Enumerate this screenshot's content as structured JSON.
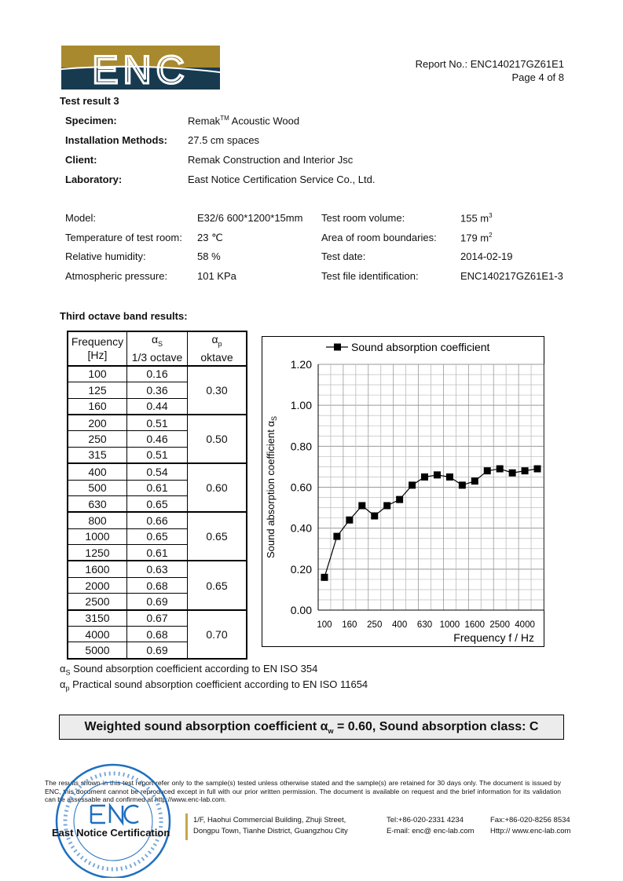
{
  "header": {
    "logo_text": "ENC",
    "report_no": "Report No.: ENC140217GZ61E1",
    "page": "Page 4 of 8",
    "logo_colors": {
      "gold": "#a8892e",
      "navy": "#173a4f"
    }
  },
  "section_title": "Test result 3",
  "info": [
    {
      "label": "Specimen:",
      "value": "Remak",
      "sup": "TM",
      "value2": " Acoustic Wood"
    },
    {
      "label": "Installation Methods:",
      "value": "27.5 cm spaces"
    },
    {
      "label": "Client:",
      "value": "Remak Construction and Interior Jsc"
    },
    {
      "label": "Laboratory:",
      "value": "East Notice Certification Service Co., Ltd."
    }
  ],
  "conditions_left": [
    {
      "label": "Model:",
      "value": "E32/6 600*1200*15mm"
    },
    {
      "label": "Temperature of test room:",
      "value": "23 ℃"
    },
    {
      "label": "Relative humidity:",
      "value": "58 %"
    },
    {
      "label": "Atmospheric pressure:",
      "value": "101 KPa"
    }
  ],
  "conditions_right": [
    {
      "label": "Test room volume:",
      "value": "155 m",
      "sup": "3"
    },
    {
      "label": "Area of room boundaries:",
      "value": "179 m",
      "sup": "2"
    },
    {
      "label": "Test date:",
      "value": "2014-02-19"
    },
    {
      "label": "Test file identification:",
      "value": "ENC140217GZ61E1-3"
    }
  ],
  "band_title": "Third octave band results:",
  "table": {
    "headers": [
      {
        "l1": "Frequency",
        "l2": "[Hz]"
      },
      {
        "l1": "α",
        "sub": "S",
        "l2": "1/3 octave"
      },
      {
        "l1": "α",
        "sub": "p",
        "l2": "oktave"
      }
    ],
    "rows": [
      [
        "100",
        "0.16"
      ],
      [
        "125",
        "0.36"
      ],
      [
        "160",
        "0.44"
      ],
      [
        "200",
        "0.51"
      ],
      [
        "250",
        "0.46"
      ],
      [
        "315",
        "0.51"
      ],
      [
        "400",
        "0.54"
      ],
      [
        "500",
        "0.61"
      ],
      [
        "630",
        "0.65"
      ],
      [
        "800",
        "0.66"
      ],
      [
        "1000",
        "0.65"
      ],
      [
        "1250",
        "0.61"
      ],
      [
        "1600",
        "0.63"
      ],
      [
        "2000",
        "0.68"
      ],
      [
        "2500",
        "0.69"
      ],
      [
        "3150",
        "0.67"
      ],
      [
        "4000",
        "0.68"
      ],
      [
        "5000",
        "0.69"
      ]
    ],
    "octave": [
      "0.30",
      "0.50",
      "0.60",
      "0.65",
      "0.65",
      "0.70"
    ]
  },
  "chart_data": {
    "type": "line",
    "legend": "Sound absorption coefficient",
    "legend_placement": "top",
    "ylabel": "Sound absorption coefficient α",
    "ylabel_sub": "S",
    "xlabel": "Frequency f / Hz",
    "x": [
      "100",
      "125",
      "160",
      "200",
      "250",
      "315",
      "400",
      "500",
      "630",
      "800",
      "1000",
      "1250",
      "1600",
      "2000",
      "2500",
      "3150",
      "4000",
      "5000"
    ],
    "values": [
      0.16,
      0.36,
      0.44,
      0.51,
      0.46,
      0.51,
      0.54,
      0.61,
      0.65,
      0.66,
      0.65,
      0.61,
      0.63,
      0.68,
      0.69,
      0.67,
      0.68,
      0.69
    ],
    "x_tick_labels": [
      "100",
      "160",
      "250",
      "400",
      "630",
      "1000",
      "1600",
      "2500",
      "4000"
    ],
    "y_ticks": [
      "0.00",
      "0.20",
      "0.40",
      "0.60",
      "0.80",
      "1.00",
      "1.20"
    ],
    "ylim": [
      0,
      1.2
    ],
    "grid": true,
    "marker": "square"
  },
  "notes": [
    {
      "sym": "α",
      "sub": "S",
      "text": " Sound absorption coefficient according to EN ISO 354"
    },
    {
      "sym": "α",
      "sub": "p",
      "text": " Practical sound absorption coefficient according to EN ISO 11654"
    }
  ],
  "summary": {
    "pre": "Weighted sound absorption coefficient α",
    "sub": "w",
    "post": " = 0.60, Sound absorption class: C"
  },
  "disclaimer": "The results shown in this test report refer only to the sample(s) tested unless otherwise stated and the sample(s) are retained for 30 days only. The document is issued by ENC, this document cannot be reproduced except in full with our prior written permission. The document is available on request and the brief information for its validation can be assessable and confirmed at http://www.enc-lab.com.",
  "stamp": {
    "ring_text": "East Notice Certification Service Co., Ltd.",
    "logo": "ENC",
    "color": "#1f6fc0"
  },
  "footer": {
    "company": "East Notice Certification",
    "addr1": "1/F, Haohui Commercial Building, Zhuji Street,",
    "addr2": "Dongpu Town, Tianhe District, Guangzhou City",
    "tel": "Tel:+86-020-2331 4234",
    "email": "E-mail: enc@ enc-lab.com",
    "fax": "Fax:+86-020-8256 8534",
    "web": "Http:// www.enc-lab.com",
    "bar_color": "#c9a64a"
  }
}
